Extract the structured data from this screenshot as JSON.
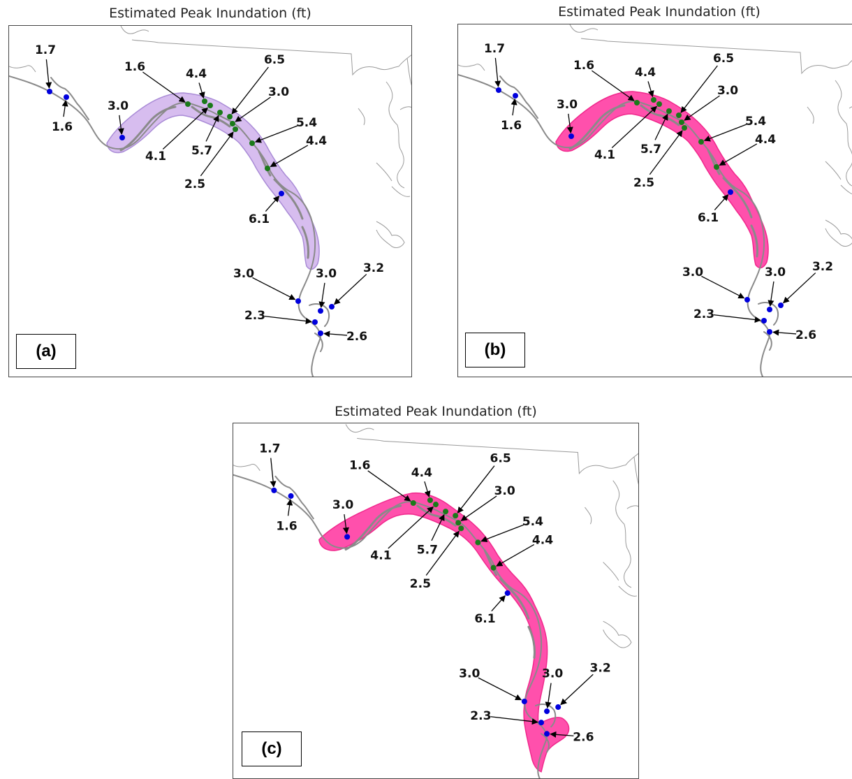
{
  "figure": {
    "panels": [
      {
        "id": "a",
        "title": "Estimated Peak Inundation (ft)",
        "label": "(a)",
        "inundation_color": "#c9a7ea",
        "inundation_stroke": "#a98bd6"
      },
      {
        "id": "b",
        "title": "Estimated Peak Inundation (ft)",
        "label": "(b)",
        "inundation_color": "#ff47a8",
        "inundation_stroke": "#f0288c"
      },
      {
        "id": "c",
        "title": "Estimated Peak Inundation (ft)",
        "label": "(c)",
        "inundation_color": "#ff47a8",
        "inundation_stroke": "#f0288c"
      }
    ],
    "gauges": [
      {
        "value": "1.7",
        "color": "#0000dd"
      },
      {
        "value": "1.6",
        "color": "#0000dd"
      },
      {
        "value": "3.0",
        "color": "#0000dd"
      },
      {
        "value": "1.6",
        "color": "#1a7a1a"
      },
      {
        "value": "4.4",
        "color": "#1a7a1a"
      },
      {
        "value": "4.1",
        "color": "#1a7a1a"
      },
      {
        "value": "6.5",
        "color": "#1a7a1a"
      },
      {
        "value": "5.7",
        "color": "#1a7a1a"
      },
      {
        "value": "3.0",
        "color": "#1a7a1a"
      },
      {
        "value": "2.5",
        "color": "#1a7a1a"
      },
      {
        "value": "5.4",
        "color": "#1a7a1a"
      },
      {
        "value": "4.4",
        "color": "#1a7a1a"
      },
      {
        "value": "6.1",
        "color": "#0000dd"
      },
      {
        "value": "3.0",
        "color": "#0000dd"
      },
      {
        "value": "3.0",
        "color": "#0000dd"
      },
      {
        "value": "3.2",
        "color": "#0000dd"
      },
      {
        "value": "2.3",
        "color": "#0000dd"
      },
      {
        "value": "2.6",
        "color": "#0000dd"
      }
    ],
    "colors": {
      "coast": "#8a8a8a",
      "boundary": "#9a9a9a",
      "frame": "#444444",
      "arrow": "#000000"
    }
  }
}
